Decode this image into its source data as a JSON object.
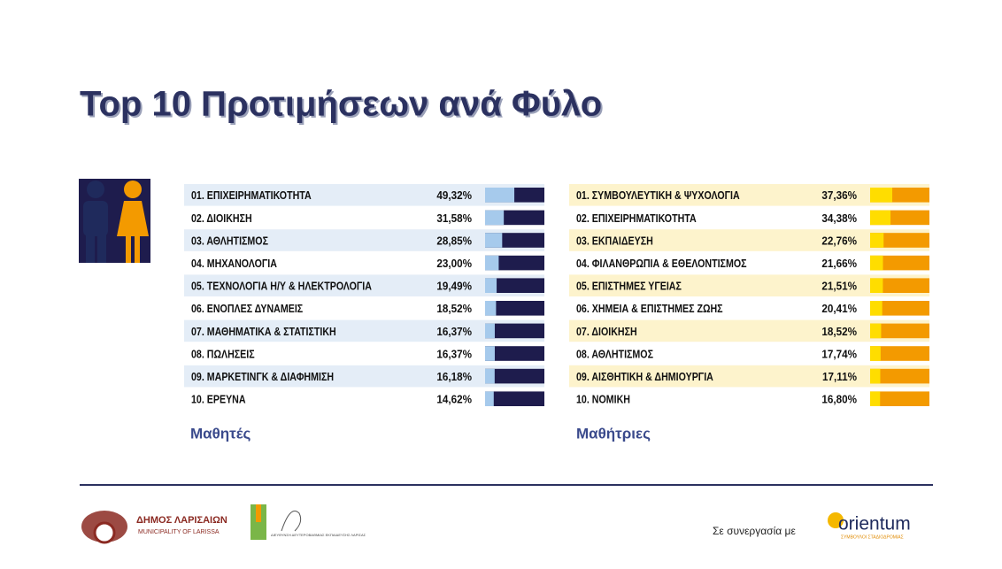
{
  "title": "Top 10 Προτιμήσεων ανά Φύλο",
  "chart_data": [
    {
      "type": "bar",
      "title": "Μαθητές",
      "categories": [
        "01. ΕΠΙΧΕΙΡΗΜΑΤΙΚΟΤΗΤΑ",
        "02. ΔΙΟΙΚΗΣΗ",
        "03. ΑΘΛΗΤΙΣΜΟΣ",
        "04. ΜΗΧΑΝΟΛΟΓΙΑ",
        "05. ΤΕΧΝΟΛΟΓΙΑ Η/Υ & ΗΛΕΚΤΡΟΛΟΓΙΑ",
        "06. ΕΝΟΠΛΕΣ ΔΥΝΑΜΕΙΣ",
        "07. ΜΑΘΗΜΑΤΙΚΑ & ΣΤΑΤΙΣΤΙΚΗ",
        "08. ΠΩΛΗΣΕΙΣ",
        "09. ΜΑΡΚΕΤΙΝΓΚ & ΔΙΑΦΗΜΙΣΗ",
        "10. ΕΡΕΥΝΑ"
      ],
      "values": [
        49.32,
        31.58,
        28.85,
        23.0,
        19.49,
        18.52,
        16.37,
        16.37,
        16.18,
        14.62
      ],
      "value_labels": [
        "49,32%",
        "31,58%",
        "28,85%",
        "23,00%",
        "19,49%",
        "18,52%",
        "16,37%",
        "16,37%",
        "16,18%",
        "14,62%"
      ],
      "xlim": [
        0,
        100
      ],
      "color": "#a6caec",
      "track_color": "#1e1c4d",
      "row_color": "#e4edf7"
    },
    {
      "type": "bar",
      "title": "Μαθήτριες",
      "categories": [
        "01. ΣΥΜΒΟΥΛΕΥΤΙΚΗ & ΨΥΧΟΛΟΓΙΑ",
        "02. ΕΠΙΧΕΙΡΗΜΑΤΙΚΟΤΗΤΑ",
        "03. ΕΚΠΑΙΔΕΥΣΗ",
        "04. ΦΙΛΑΝΘΡΩΠΙΑ & ΕΘΕΛΟΝΤΙΣΜΟΣ",
        "05. ΕΠΙΣΤΗΜΕΣ ΥΓΕΙΑΣ",
        "06. ΧΗΜΕΙΑ & ΕΠΙΣΤΗΜΕΣ ΖΩΗΣ",
        "07. ΔΙΟΙΚΗΣΗ",
        "08. ΑΘΛΗΤΙΣΜΟΣ",
        "09. ΑΙΣΘΗΤΙΚΗ & ΔΗΜΙΟΥΡΓΙΑ",
        "10. ΝΟΜΙΚΗ"
      ],
      "values": [
        37.36,
        34.38,
        22.76,
        21.66,
        21.51,
        20.41,
        18.52,
        17.74,
        17.11,
        16.8
      ],
      "value_labels": [
        "37,36%",
        "34,38%",
        "22,76%",
        "21,66%",
        "21,51%",
        "20,41%",
        "18,52%",
        "17,74%",
        "17,11%",
        "16,80%"
      ],
      "xlim": [
        0,
        100
      ],
      "color": "#ffdd00",
      "track_color": "#f39a00",
      "row_color": "#fdf3cc"
    }
  ],
  "footer": {
    "municipality": "ΔΗΜΟΣ ΛΑΡΙΣΑΙΩΝ",
    "municipality_en": "MUNICIPALITY OF LARISSA",
    "directorate": "ΔΙΕΥΘΥΝΣΗ ΔΕΥΤΕΡΟΒΑΘΜΙΑΣ ΕΚΠΑΙΔΕΥΣΗΣ ΛΑΡΙΣΑΣ",
    "partner_text": "Σε συνεργασία με",
    "partner": "orientum",
    "partner_sub": "ΣΥΜΒΟΥΛΟΙ ΣΤΑΔΙΟΔΡΟΜΙΑΣ"
  }
}
